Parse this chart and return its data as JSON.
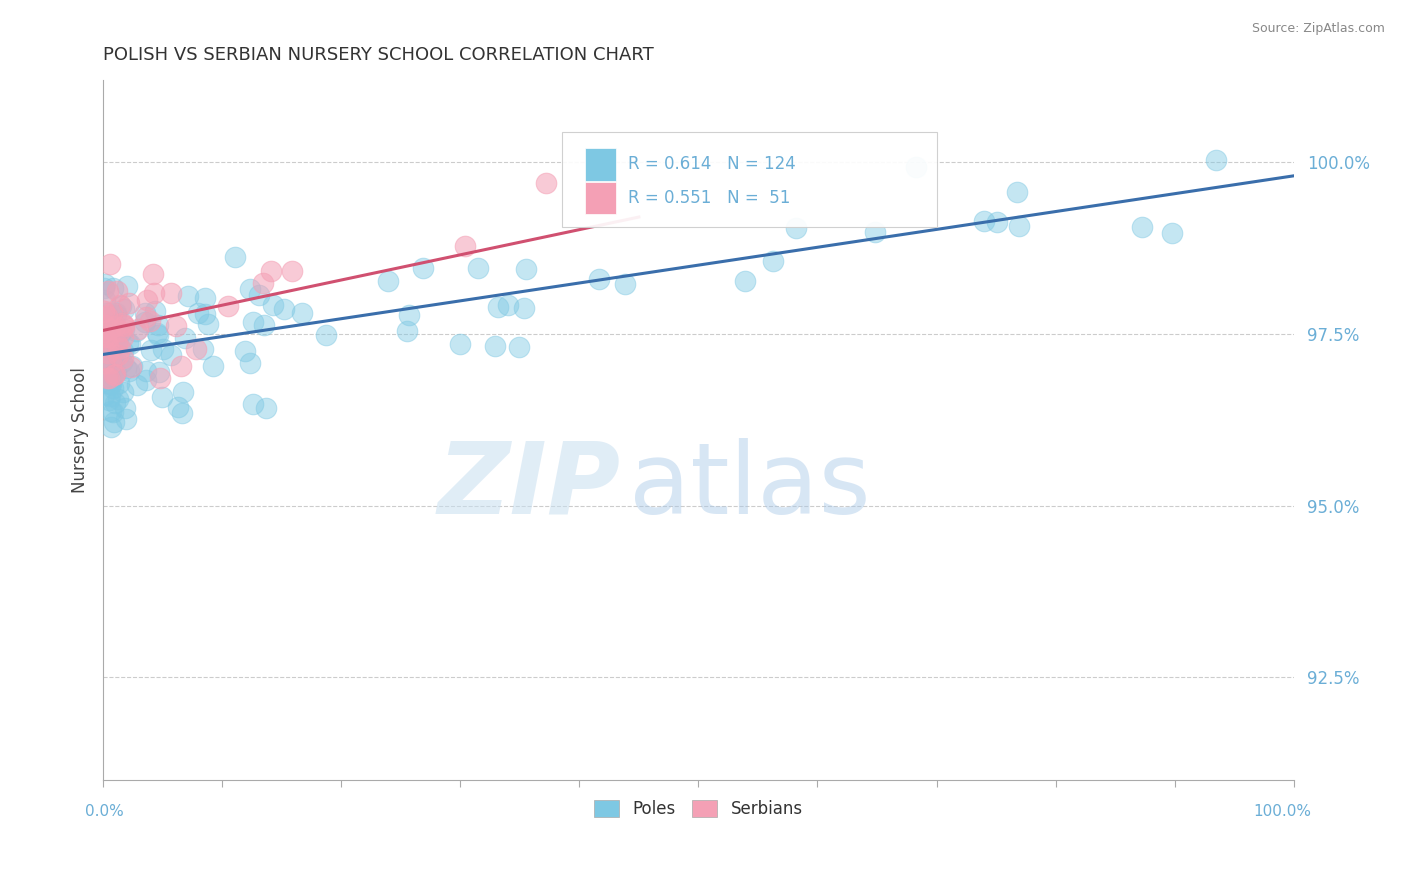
{
  "title": "POLISH VS SERBIAN NURSERY SCHOOL CORRELATION CHART",
  "source": "Source: ZipAtlas.com",
  "ylabel": "Nursery School",
  "yticks": [
    92.5,
    95.0,
    97.5,
    100.0
  ],
  "ytick_labels": [
    "92.5%",
    "95.0%",
    "97.5%",
    "100.0%"
  ],
  "xmin": 0.0,
  "xmax": 100.0,
  "ymin": 91.0,
  "ymax": 101.2,
  "poles_color": "#7ec8e3",
  "serbians_color": "#f4a0b5",
  "poles_line_color": "#3a6eab",
  "serbians_line_color": "#d05070",
  "legend_poles_R": "R = 0.614",
  "legend_poles_N": "N = 124",
  "legend_serbians_R": "R = 0.551",
  "legend_serbians_N": "N =  51",
  "watermark_zip": "ZIP",
  "watermark_atlas": "atlas",
  "background_color": "#ffffff",
  "grid_color": "#cccccc",
  "title_color": "#333333",
  "axis_color": "#6baed6",
  "poles_trend_x0": 0.0,
  "poles_trend_y0": 97.2,
  "poles_trend_x1": 100.0,
  "poles_trend_y1": 99.8,
  "serbians_trend_x0": 0.0,
  "serbians_trend_y0": 97.55,
  "serbians_trend_x1": 45.0,
  "serbians_trend_y1": 99.2
}
